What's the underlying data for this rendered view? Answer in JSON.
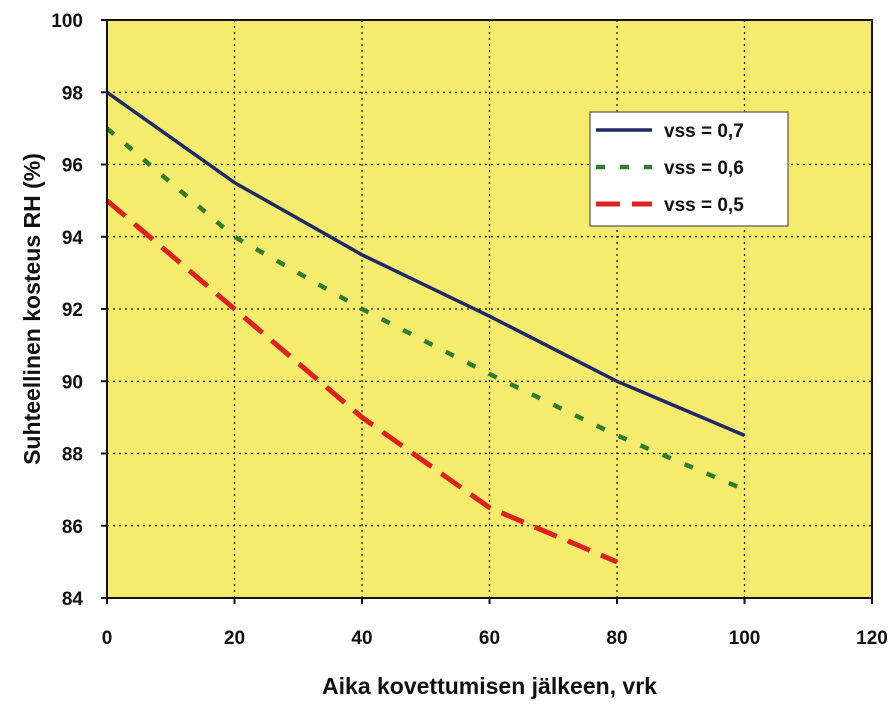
{
  "chart_data": {
    "type": "line",
    "title": "",
    "xlabel": "Aika kovettumisen jälkeen, vrk",
    "ylabel": "Suhteellinen kosteus RH (%)",
    "xlim": [
      0,
      120
    ],
    "ylim": [
      84,
      100
    ],
    "x_ticks": [
      "0",
      "20",
      "40",
      "60",
      "80",
      "100",
      "120"
    ],
    "y_ticks": [
      "84",
      "86",
      "88",
      "90",
      "92",
      "94",
      "96",
      "98",
      "100"
    ],
    "grid": true,
    "legend_position": "top-right",
    "colors": {
      "plot_bg": "#f5ec6e",
      "grid": "#222222"
    },
    "series": [
      {
        "name": "vss = 0,7",
        "color": "#1f2a6b",
        "style": "solid",
        "x": [
          0,
          20,
          40,
          60,
          80,
          100
        ],
        "y": [
          98,
          95.5,
          93.5,
          91.8,
          90,
          88.5
        ]
      },
      {
        "name": "vss = 0,6",
        "color": "#2e7d32",
        "style": "dotted",
        "x": [
          0,
          20,
          40,
          60,
          80,
          100
        ],
        "y": [
          97,
          94,
          92,
          90.2,
          88.5,
          87
        ]
      },
      {
        "name": "vss = 0,5",
        "color": "#e02020",
        "style": "dashed",
        "x": [
          0,
          20,
          40,
          60,
          80
        ],
        "y": [
          95,
          92,
          89,
          86.5,
          85
        ]
      }
    ]
  }
}
